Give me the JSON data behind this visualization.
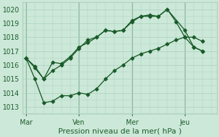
{
  "xlabel": "Pression niveau de la mer( hPa )",
  "background_color": "#cce8d8",
  "grid_color": "#aacfbe",
  "line_color": "#1a5c2a",
  "vline_color": "#3a7a4a",
  "ylim": [
    1012.5,
    1020.5
  ],
  "yticks": [
    1013,
    1014,
    1015,
    1016,
    1017,
    1018,
    1019,
    1020
  ],
  "xtick_labels": [
    "Mar",
    "Ven",
    "Mer",
    "Jeu"
  ],
  "xtick_positions": [
    0,
    3,
    6,
    9
  ],
  "xlim": [
    -0.2,
    10.8
  ],
  "series": [
    {
      "x": [
        0,
        0.5,
        1.0,
        1.5,
        2.0,
        2.5,
        3.0,
        3.5,
        4.0,
        4.5,
        5.0,
        5.5,
        6.0,
        6.5,
        7.0,
        7.5,
        8.0,
        8.5,
        9.0,
        9.5,
        10.0
      ],
      "y": [
        1016.5,
        1015.9,
        1015.0,
        1016.2,
        1016.1,
        1016.6,
        1017.3,
        1017.6,
        1018.0,
        1018.5,
        1018.4,
        1018.5,
        1019.2,
        1019.5,
        1019.6,
        1019.5,
        1020.0,
        1019.1,
        1018.0,
        1018.0,
        1017.7
      ]
    },
    {
      "x": [
        0,
        0.5,
        1.0,
        1.5,
        2.0,
        2.5,
        3.0,
        3.5,
        4.0,
        4.5,
        5.0,
        5.5,
        6.0,
        6.5,
        7.0,
        7.5,
        8.0,
        9.0,
        9.5,
        10.0
      ],
      "y": [
        1016.5,
        1015.8,
        1015.0,
        1015.6,
        1016.0,
        1016.5,
        1017.2,
        1017.8,
        1018.0,
        1018.5,
        1018.4,
        1018.5,
        1019.1,
        1019.5,
        1019.5,
        1019.5,
        1020.0,
        1018.5,
        1017.3,
        1017.0
      ]
    },
    {
      "x": [
        0,
        0.5,
        1.0,
        1.5,
        2.0,
        2.5,
        3.0,
        3.5,
        4.0,
        4.5,
        5.0,
        5.5,
        6.0,
        6.5,
        7.0,
        7.5,
        8.0,
        8.5,
        9.0,
        9.5,
        10.0
      ],
      "y": [
        1016.5,
        1015.0,
        1013.3,
        1013.4,
        1013.8,
        1013.8,
        1014.0,
        1013.9,
        1014.3,
        1015.0,
        1015.6,
        1016.0,
        1016.5,
        1016.8,
        1017.0,
        1017.2,
        1017.5,
        1017.8,
        1018.0,
        1017.3,
        1017.0
      ]
    }
  ],
  "vline_positions": [
    0,
    3,
    6,
    9
  ],
  "marker": "D",
  "marker_size": 2.5,
  "linewidth": 1.0,
  "font_size": 7.0,
  "xlabel_size": 8.0
}
